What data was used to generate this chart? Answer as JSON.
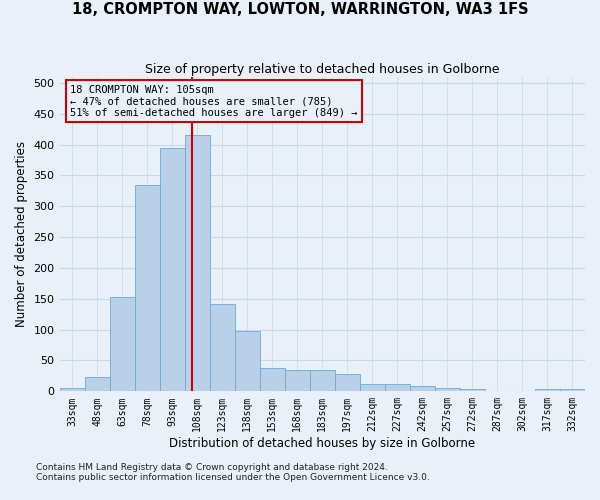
{
  "title": "18, CROMPTON WAY, LOWTON, WARRINGTON, WA3 1FS",
  "subtitle": "Size of property relative to detached houses in Golborne",
  "xlabel": "Distribution of detached houses by size in Golborne",
  "ylabel": "Number of detached properties",
  "categories": [
    "33sqm",
    "48sqm",
    "63sqm",
    "78sqm",
    "93sqm",
    "108sqm",
    "123sqm",
    "138sqm",
    "153sqm",
    "168sqm",
    "183sqm",
    "197sqm",
    "212sqm",
    "227sqm",
    "242sqm",
    "257sqm",
    "272sqm",
    "287sqm",
    "302sqm",
    "317sqm",
    "332sqm"
  ],
  "values": [
    5,
    23,
    153,
    335,
    395,
    415,
    142,
    98,
    38,
    35,
    35,
    28,
    12,
    12,
    8,
    5,
    3,
    0,
    0,
    3,
    3
  ],
  "bar_color": "#b8d0e8",
  "bar_edge_color": "#6aaad4",
  "grid_color": "#c8d8e8",
  "background_color": "#eaf0f8",
  "vline_color": "#cc0000",
  "annotation_line1": "18 CROMPTON WAY: 105sqm",
  "annotation_line2": "← 47% of detached houses are smaller (785)",
  "annotation_line3": "51% of semi-detached houses are larger (849) →",
  "annotation_box_edgecolor": "#cc0000",
  "footnote1": "Contains HM Land Registry data © Crown copyright and database right 2024.",
  "footnote2": "Contains public sector information licensed under the Open Government Licence v3.0.",
  "ylim_max": 510,
  "yticks": [
    0,
    50,
    100,
    150,
    200,
    250,
    300,
    350,
    400,
    450,
    500
  ]
}
